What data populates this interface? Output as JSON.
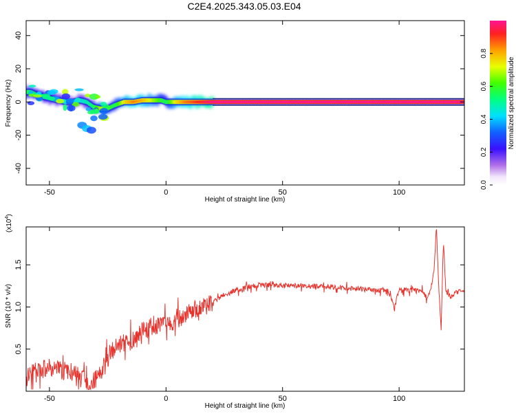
{
  "title": "C2E4.2025.343.05.03.E04",
  "chart_data": [
    {
      "type": "heatmap",
      "xlabel": "Height of straight line (km)",
      "ylabel": "Frequency (Hz)",
      "xlim": [
        -60,
        128
      ],
      "ylim": [
        -50,
        49
      ],
      "xticks": [
        -50,
        0,
        50,
        100
      ],
      "yticks": [
        -40,
        -20,
        0,
        20,
        40
      ],
      "colorbar": {
        "label": "Normalized spectral amplitude",
        "range": [
          0,
          1
        ],
        "ticks": [
          "0.0",
          "0.2",
          "0.4",
          "0.6",
          "0.8"
        ],
        "tick_values": [
          0.0,
          0.2,
          0.4,
          0.6,
          0.8
        ]
      },
      "ridge": {
        "x": [
          -58,
          -55,
          -52,
          -49,
          -46,
          -43,
          -40,
          -37,
          -34,
          -31,
          -28,
          -25,
          -22,
          -18,
          -14,
          -10,
          -6,
          -2,
          0,
          4,
          8,
          12,
          16,
          20,
          30,
          40,
          50,
          60,
          70,
          80,
          90,
          100,
          110,
          115,
          120,
          125,
          128
        ],
        "freq": [
          6,
          4,
          3,
          2,
          1,
          0,
          0,
          1,
          0,
          -3,
          -4,
          -4,
          -2,
          0,
          0,
          1,
          1,
          1,
          0,
          0,
          0,
          0,
          0,
          0,
          0,
          0,
          0,
          0,
          0,
          0,
          0,
          0,
          0,
          0,
          0,
          0,
          0
        ],
        "amplitude": [
          0.5,
          0.45,
          0.45,
          0.4,
          0.4,
          0.35,
          0.3,
          0.35,
          0.4,
          0.5,
          0.7,
          0.6,
          0.5,
          0.75,
          0.85,
          0.8,
          0.7,
          0.55,
          0.5,
          0.75,
          0.85,
          0.9,
          0.95,
          1.0,
          1.0,
          1.0,
          1.0,
          1.0,
          1.0,
          1.0,
          1.0,
          1.0,
          1.0,
          1.0,
          1.0,
          1.0,
          1.0
        ]
      },
      "secondary_blob": {
        "x": [
          -36,
          -34,
          -32
        ],
        "freq": [
          -14,
          -16,
          -17
        ],
        "amplitude": [
          0.35,
          0.4,
          0.3
        ]
      }
    },
    {
      "type": "line",
      "xlabel": "Height of straight line (km)",
      "ylabel": "SNR (10 * v/v)",
      "yscale_label": "(x10",
      "yscale_exponent": "4",
      "xlim": [
        -60,
        128
      ],
      "ylim": [
        0,
        1.95
      ],
      "xticks": [
        -50,
        0,
        50,
        100
      ],
      "yticks": [
        0.5,
        1.0,
        1.5
      ],
      "ytick_labels": [
        "0.5",
        "1.0",
        "1.5"
      ],
      "color": "#e8322c",
      "x": [
        -60,
        -50,
        -40,
        -32,
        -28,
        -24,
        -20,
        -15,
        -10,
        -5,
        0,
        5,
        10,
        15,
        20,
        25,
        30,
        35,
        40,
        50,
        60,
        70,
        80,
        90,
        95,
        98,
        100,
        105,
        110,
        112,
        114,
        115,
        116,
        117,
        118,
        119,
        120,
        122,
        125,
        128
      ],
      "y": [
        0.2,
        0.28,
        0.22,
        0.08,
        0.22,
        0.45,
        0.55,
        0.6,
        0.72,
        0.78,
        0.78,
        0.85,
        0.95,
        0.98,
        1.05,
        1.15,
        1.2,
        1.24,
        1.26,
        1.26,
        1.25,
        1.24,
        1.22,
        1.2,
        1.2,
        1.0,
        1.2,
        1.2,
        1.18,
        1.1,
        1.25,
        1.45,
        1.95,
        1.25,
        0.72,
        1.78,
        1.2,
        1.12,
        1.18,
        1.18
      ]
    }
  ]
}
